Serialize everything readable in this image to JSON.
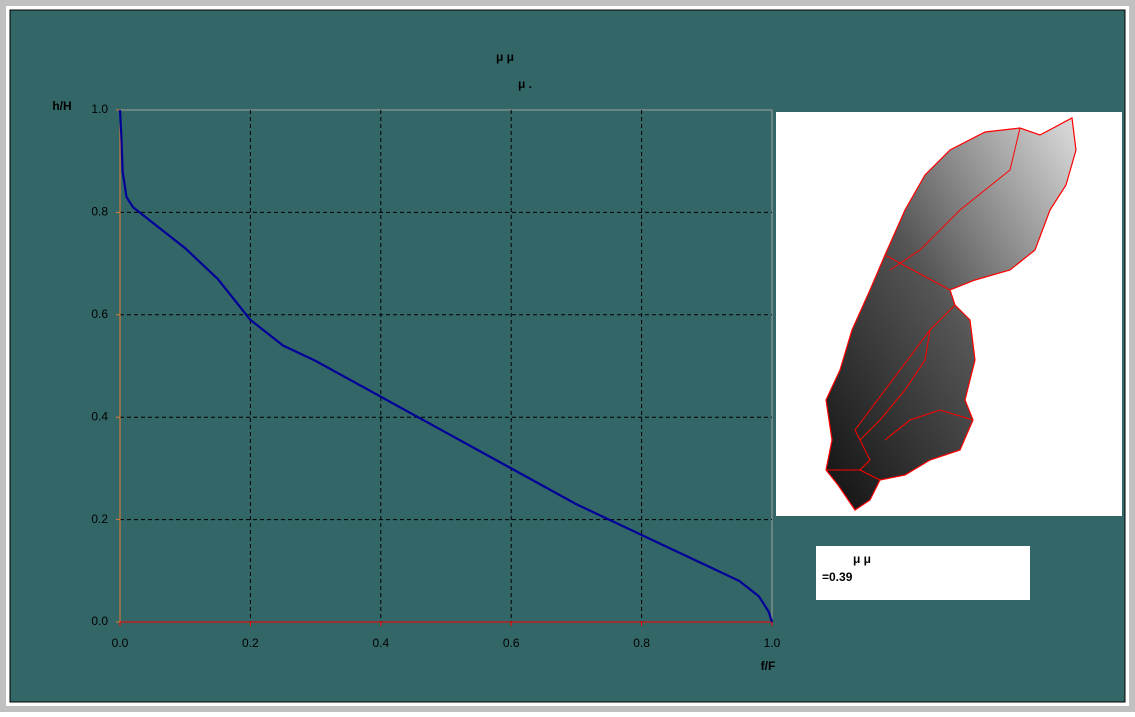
{
  "chart_data": {
    "type": "line",
    "title": [
      "μ                 μ",
      "μ                  ."
    ],
    "xlabel": "f/F",
    "ylabel": "h/H",
    "xlim": [
      0,
      1
    ],
    "ylim": [
      0,
      1
    ],
    "xticks": [
      {
        "value": 0,
        "label": "0.0"
      },
      0.2,
      0.4,
      0.6,
      0.8,
      {
        "value": 1,
        "label": "1.0"
      }
    ],
    "yticks": [
      {
        "value": 0,
        "label": "0.0"
      },
      0.2,
      0.4,
      0.6,
      0.8,
      {
        "value": 1,
        "label": "1.0"
      }
    ],
    "grid": true,
    "series": [
      {
        "color": "#000099",
        "x": [
          0,
          0.002,
          0.004,
          0.01,
          0.02,
          0.04,
          0.06,
          0.1,
          0.15,
          0.2,
          0.25,
          0.3,
          0.4,
          0.5,
          0.6,
          0.7,
          0.8,
          0.9,
          0.95,
          0.98,
          0.995,
          1.0
        ],
        "values": [
          1.0,
          0.95,
          0.88,
          0.83,
          0.81,
          0.79,
          0.77,
          0.73,
          0.67,
          0.59,
          0.54,
          0.51,
          0.44,
          0.37,
          0.3,
          0.23,
          0.17,
          0.11,
          0.08,
          0.05,
          0.02,
          0.0
        ]
      }
    ],
    "annotation": [
      "μ                              μ",
      "=0.39"
    ]
  }
}
